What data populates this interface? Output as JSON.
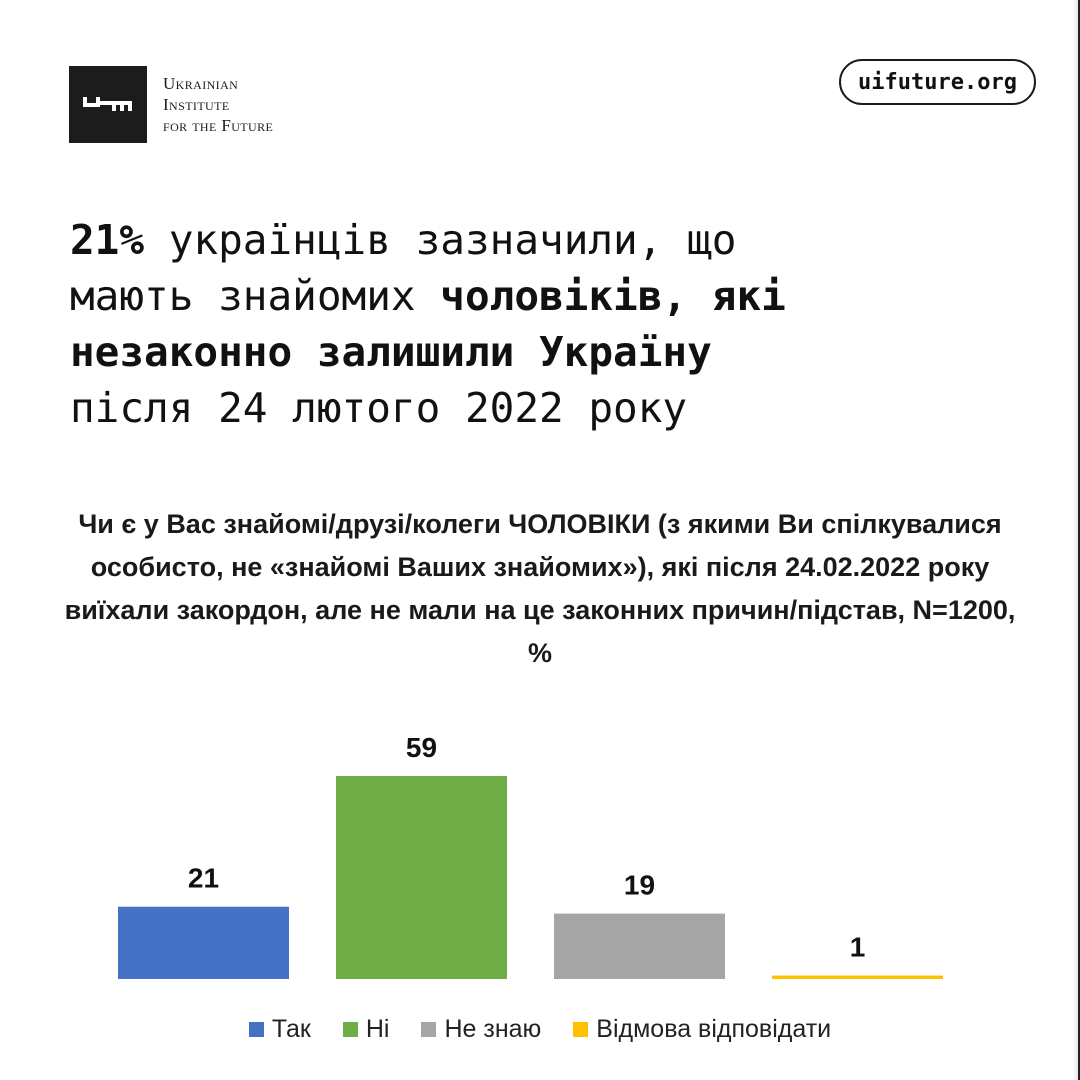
{
  "logo": {
    "line1": "Ukrainian",
    "line2": "Institute",
    "line3": "for the Future",
    "icon": "key-icon"
  },
  "url": "uifuture.org",
  "headline": {
    "l1_bold": "21%",
    "l1_rest": " українців зазначили, що",
    "l2_regular": "мають знайомих ",
    "l2_bold": "чоловіків, які",
    "l3_bold": "незаконно залишили Україну",
    "l4_regular": "після 24 лютого 2022 року"
  },
  "question": "Чи є у Вас знайомі/друзі/колеги ЧОЛОВІКИ (з якими Ви спілкувалися особисто, не «знайомі Ваших знайомих»), які після 24.02.2022 року виїхали закордон, але не мали на це законних причин/підстав, N=1200, %",
  "chart_data": {
    "type": "bar",
    "categories": [
      "Так",
      "Ні",
      "Не знаю",
      "Відмова відповідати"
    ],
    "values": [
      21,
      59,
      19,
      1
    ],
    "colors": [
      "#4472c4",
      "#70ad47",
      "#a5a5a5",
      "#ffc000"
    ],
    "ylim": [
      0,
      59
    ],
    "grid": false,
    "legend_position": "bottom"
  }
}
